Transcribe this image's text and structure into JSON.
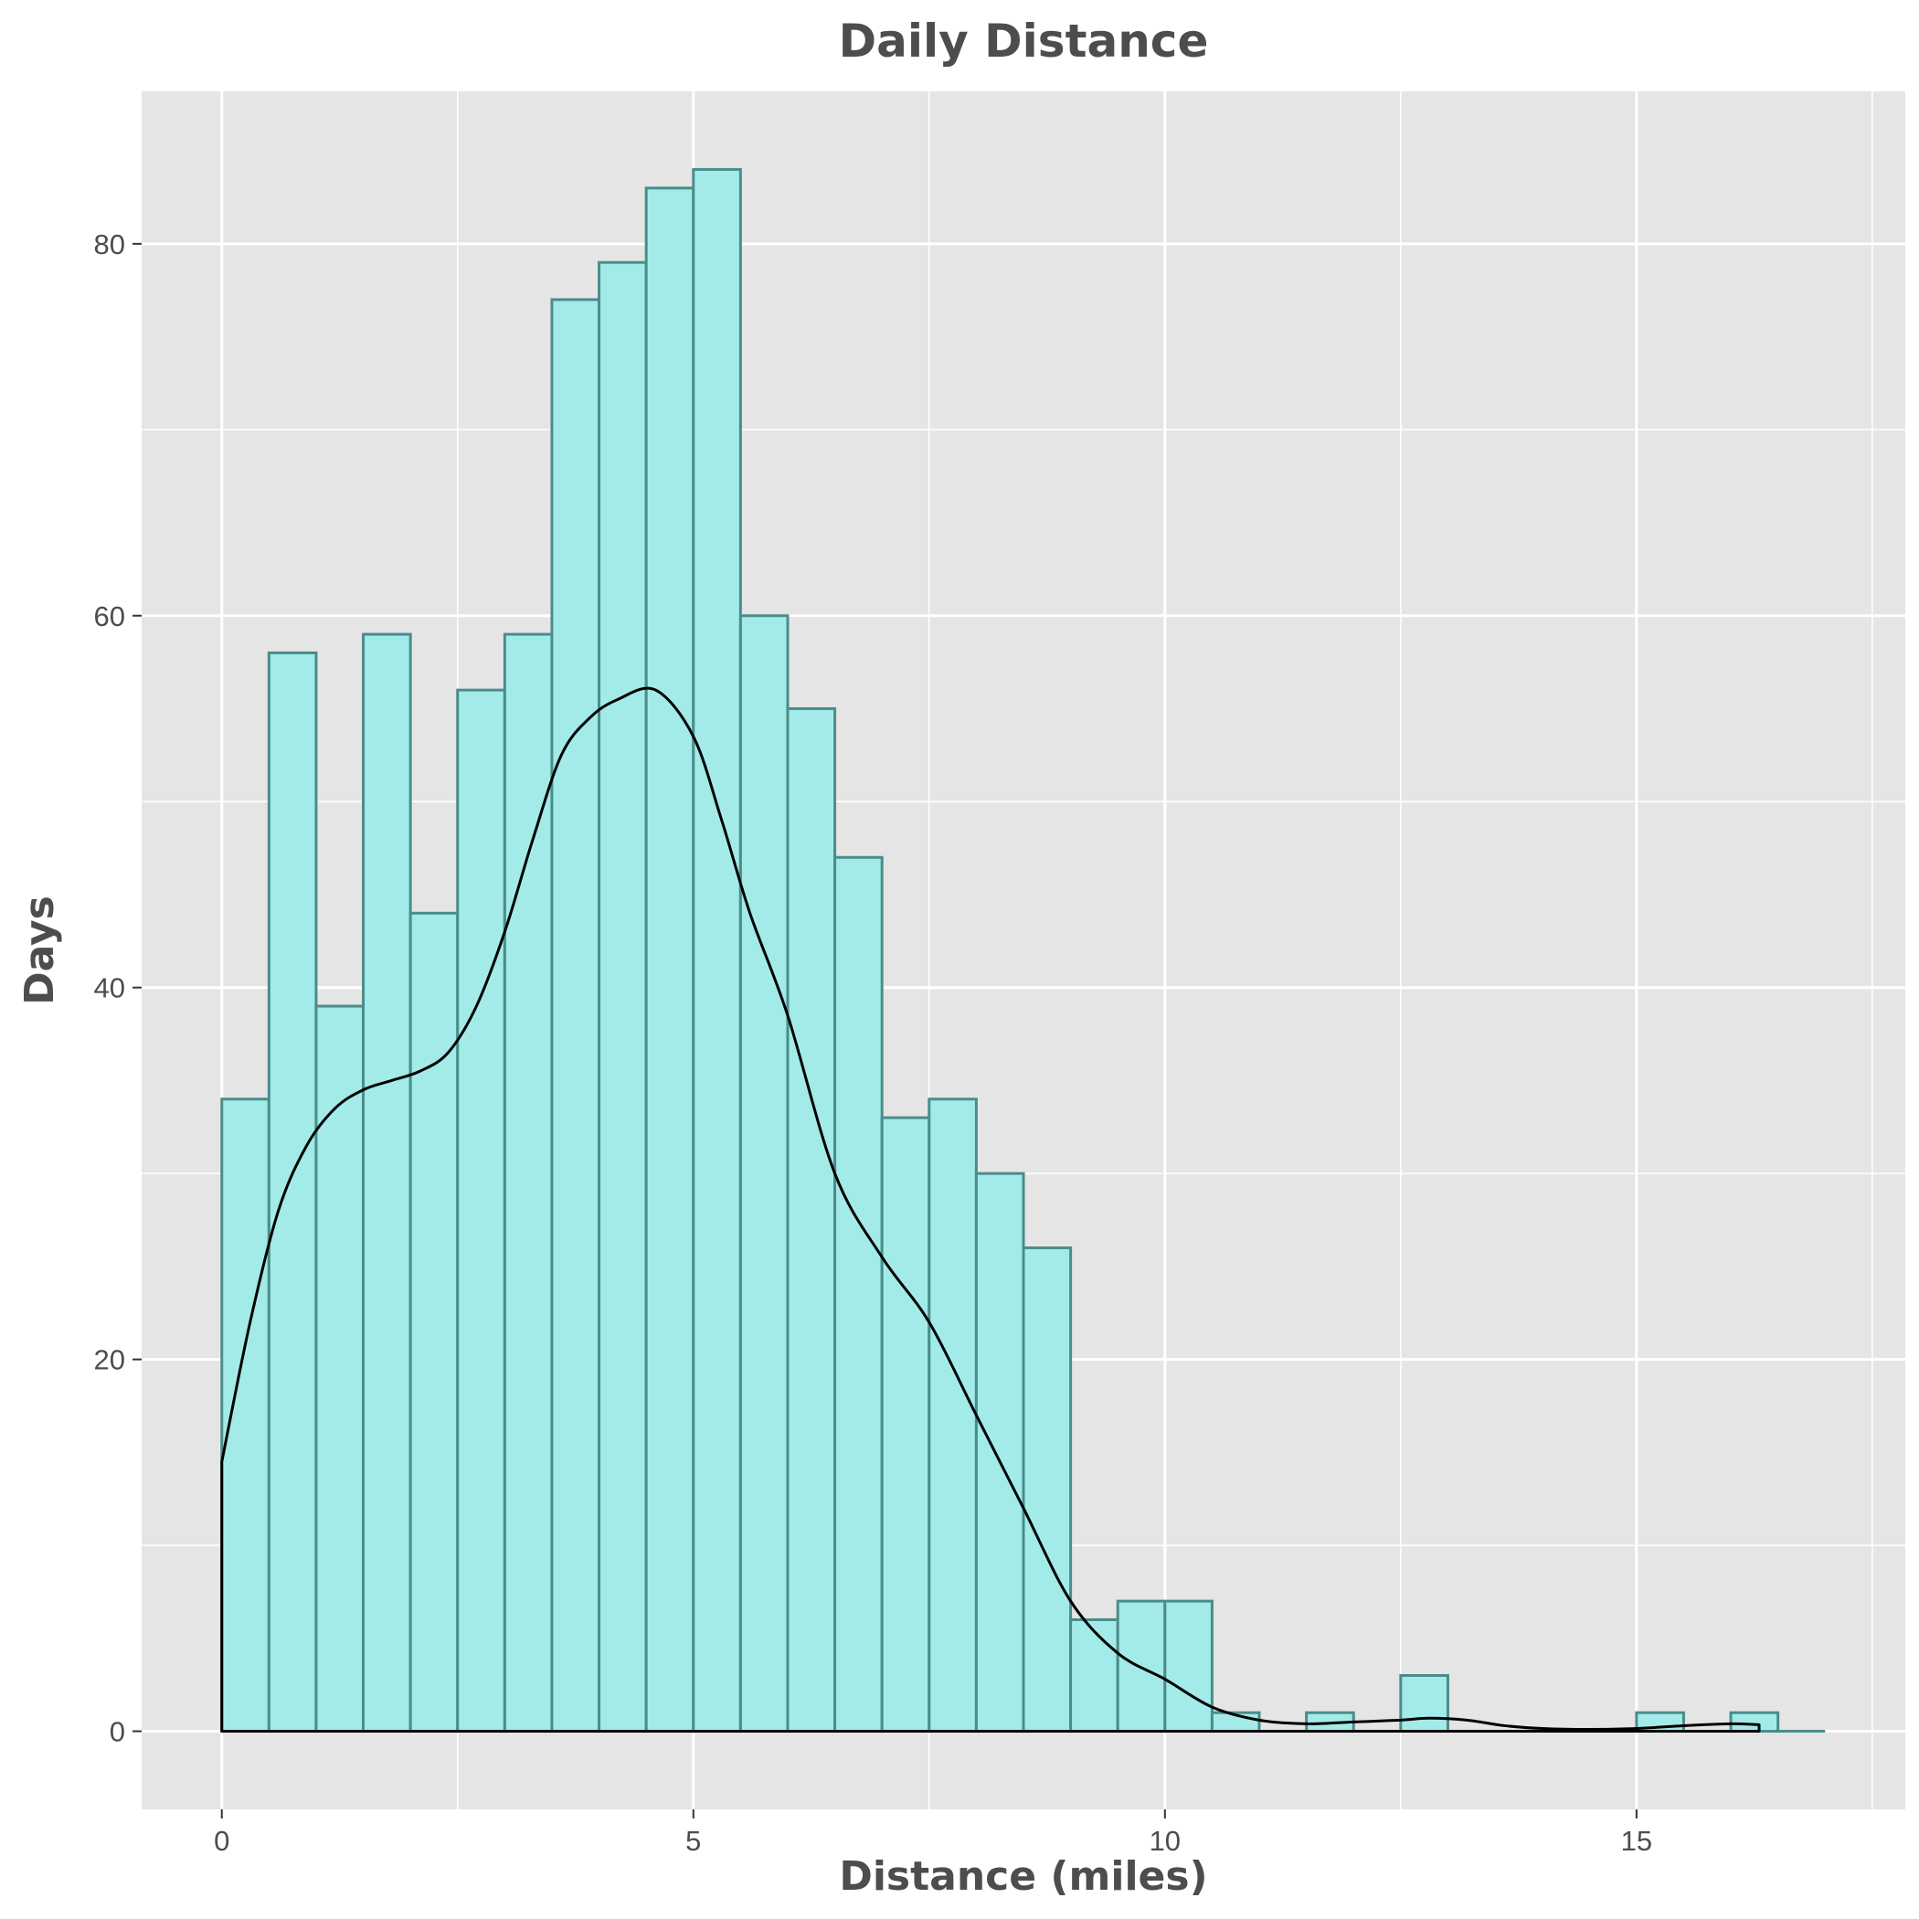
{
  "chart_data": {
    "type": "bar",
    "title": "Daily Distance",
    "xlabel": "Distance (miles)",
    "ylabel": "Days",
    "xlim": [
      -0.85,
      17.85
    ],
    "ylim": [
      -4.2,
      88.2
    ],
    "x_major_ticks": [
      0,
      5,
      10,
      15
    ],
    "x_minor_ticks": [
      2.5,
      7.5,
      12.5,
      17.5
    ],
    "y_major_ticks": [
      0,
      20,
      40,
      60,
      80
    ],
    "y_minor_ticks": [
      10,
      30,
      50,
      70
    ],
    "x_tick_labels": [
      "0",
      "5",
      "10",
      "15"
    ],
    "y_tick_labels": [
      "0",
      "20",
      "40",
      "60",
      "80"
    ],
    "grid": true,
    "bin_width": 0.5,
    "bin_starts": [
      0,
      0.5,
      1,
      1.5,
      2,
      2.5,
      3,
      3.5,
      4,
      4.5,
      5,
      5.5,
      6,
      6.5,
      7,
      7.5,
      8,
      8.5,
      9,
      9.5,
      10,
      10.5,
      11,
      11.5,
      12,
      12.5,
      13,
      13.5,
      14,
      14.5,
      15,
      15.5,
      16,
      16.5
    ],
    "counts": [
      34,
      58,
      39,
      59,
      44,
      56,
      59,
      77,
      79,
      83,
      84,
      60,
      55,
      47,
      33,
      34,
      30,
      26,
      6,
      7,
      7,
      1,
      0,
      1,
      0,
      3,
      0,
      0,
      0,
      0,
      1,
      0,
      1,
      0
    ],
    "density_curve": {
      "x": [
        0,
        0.3,
        0.6,
        0.9,
        1.2,
        1.5,
        1.8,
        2.1,
        2.4,
        2.7,
        3.0,
        3.3,
        3.6,
        3.9,
        4.2,
        4.6,
        5.0,
        5.3,
        5.6,
        6.0,
        6.5,
        7.0,
        7.5,
        8.0,
        8.5,
        9.0,
        9.5,
        10.0,
        10.5,
        11.0,
        11.5,
        12.0,
        12.5,
        12.8,
        13.2,
        13.6,
        14.0,
        14.5,
        15.0,
        15.5,
        16.0,
        16.3
      ],
      "y": [
        14.5,
        22,
        28,
        31.5,
        33.5,
        34.5,
        35,
        35.5,
        36.5,
        39,
        43,
        48,
        52.5,
        54.5,
        55.5,
        56,
        53.5,
        49,
        44,
        38.5,
        30,
        25.5,
        22,
        17,
        12,
        7,
        4.2,
        2.8,
        1.3,
        0.6,
        0.4,
        0.5,
        0.6,
        0.7,
        0.6,
        0.3,
        0.15,
        0.1,
        0.15,
        0.3,
        0.4,
        0.35
      ]
    },
    "colors": {
      "panel_background": "#e5e5e5",
      "grid": "#ffffff",
      "bar_fill": "#a3ebe9",
      "bar_outline": "#4a8d8b",
      "curve": "#000000",
      "text": "#4d4d4d",
      "axis_ticks": "#333333"
    }
  }
}
